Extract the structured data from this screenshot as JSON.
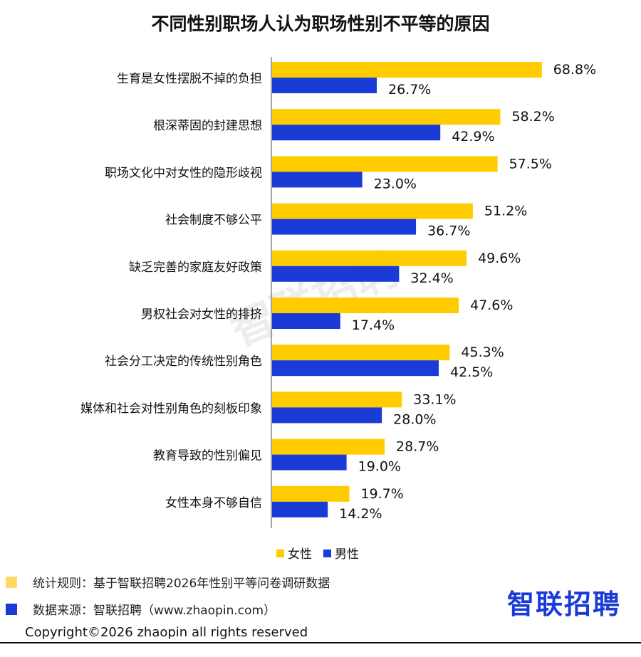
{
  "chart_data": {
    "type": "bar",
    "orientation": "horizontal",
    "title": "不同性别职场人认为职场性别不平等的原因",
    "categories": [
      "生育是女性摆脱不掉的负担",
      "根深蒂固的封建思想",
      "职场文化中对女性的隐形歧视",
      "社会制度不够公平",
      "缺乏完善的家庭友好政策",
      "男权社会对女性的排挤",
      "社会分工决定的传统性别角色",
      "媒体和社会对性别角色的刻板印象",
      "教育导致的性别偏见",
      "女性本身不够自信"
    ],
    "series": [
      {
        "name": "女性",
        "color": "#FFCC00",
        "values": [
          68.8,
          58.2,
          57.5,
          51.2,
          49.6,
          47.6,
          45.3,
          33.1,
          28.7,
          19.7
        ],
        "labels": [
          "68.8%",
          "58.2%",
          "57.5%",
          "51.2%",
          "49.6%",
          "47.6%",
          "45.3%",
          "33.1%",
          "28.7%",
          "19.7%"
        ]
      },
      {
        "name": "男性",
        "color": "#1A3BD6",
        "values": [
          26.7,
          42.9,
          23.0,
          36.7,
          32.4,
          17.4,
          42.5,
          28.0,
          19.0,
          14.2
        ],
        "labels": [
          "26.7%",
          "42.9%",
          "23.0%",
          "36.7%",
          "32.4%",
          "17.4%",
          "42.5%",
          "28.0%",
          "19.0%",
          "14.2%"
        ]
      }
    ],
    "xlim": [
      0,
      85
    ],
    "grid": false,
    "legend_position": "bottom"
  },
  "watermark": "智联招聘",
  "notes": [
    {
      "text": "统计规则：基于智联招聘2026年性别平等问卷调研数据",
      "color": "#FFD966"
    },
    {
      "text": "数据来源：智联招聘（www.zhaopin.com）",
      "color": "#1A3BD6"
    }
  ],
  "logo": "智联招聘",
  "copyright": "Copyright©2026 zhaopin all rights reserved"
}
